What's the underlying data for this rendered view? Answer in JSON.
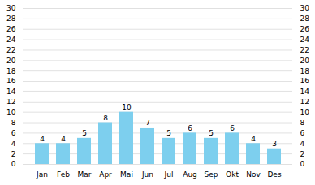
{
  "chart_data": {
    "type": "bar",
    "categories": [
      "Jan",
      "Feb",
      "Mar",
      "Apr",
      "Mai",
      "Jun",
      "Jul",
      "Aug",
      "Sep",
      "Okt",
      "Nov",
      "Des"
    ],
    "values": [
      4,
      4,
      5,
      8,
      10,
      7,
      5,
      6,
      5,
      6,
      4,
      3
    ],
    "color": "#7DCFEE",
    "ylim": [
      0,
      30
    ],
    "yticks": [
      0,
      2,
      4,
      6,
      8,
      10,
      12,
      14,
      16,
      18,
      20,
      22,
      24,
      26,
      28,
      30
    ],
    "grid": true,
    "data_labels": true
  }
}
